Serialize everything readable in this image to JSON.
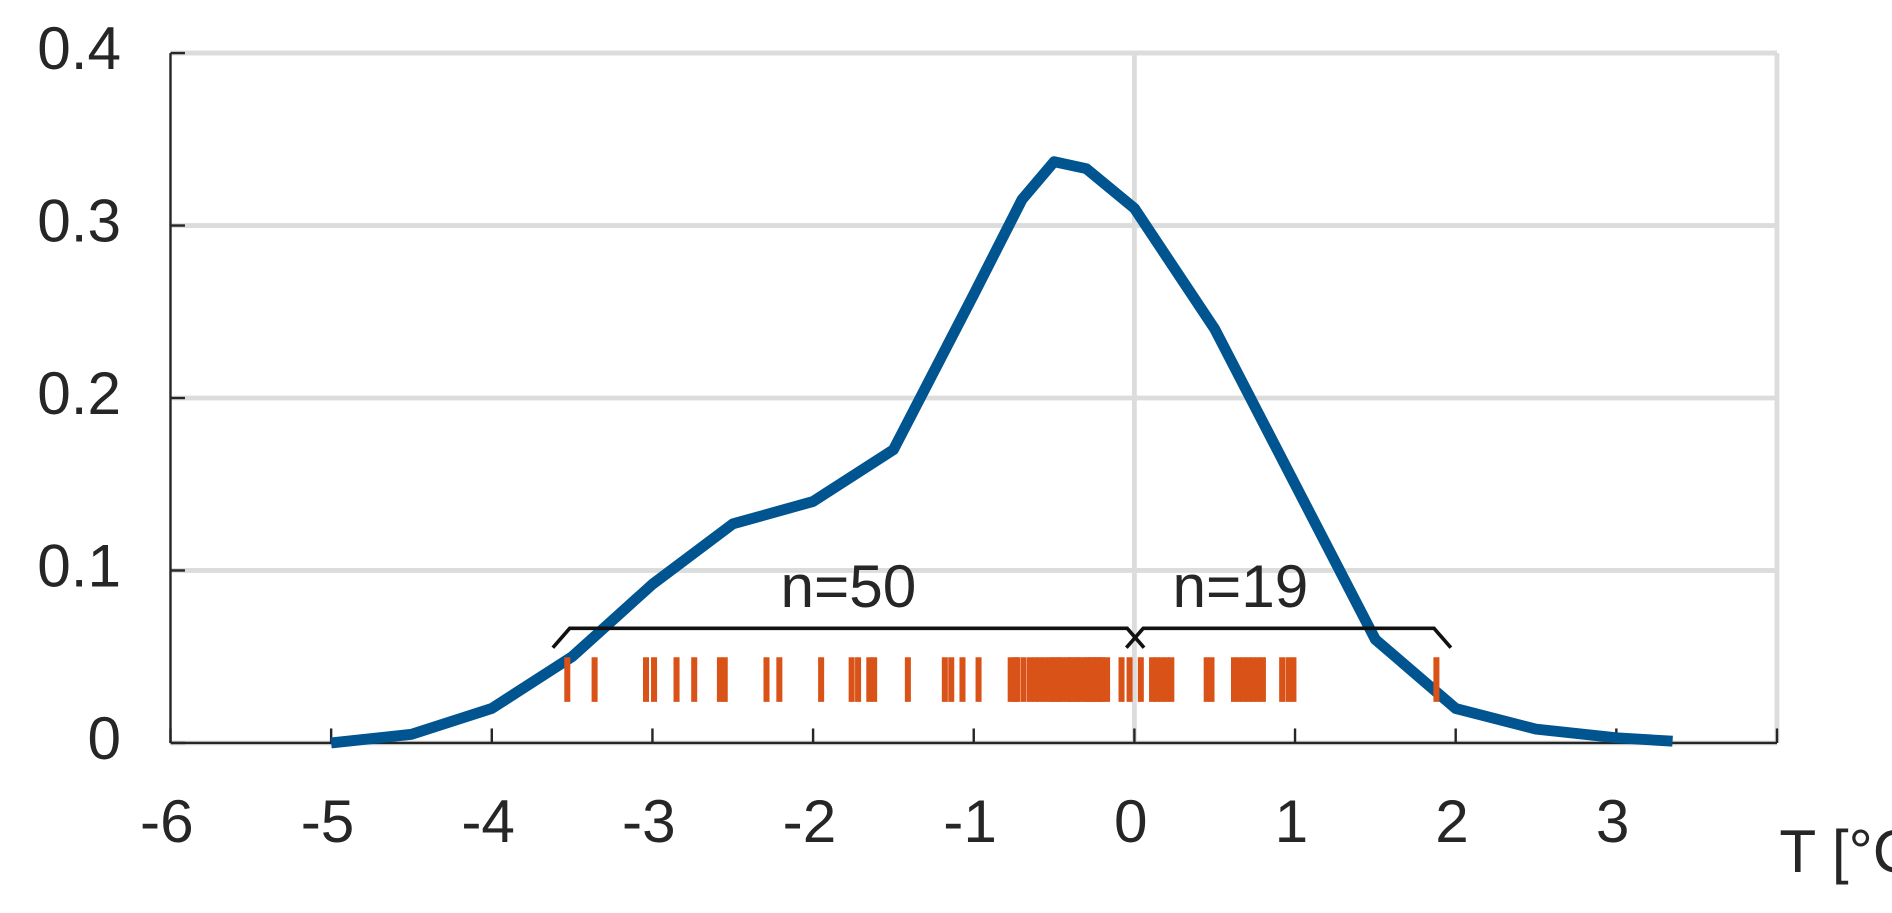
{
  "chart_data": {
    "type": "line",
    "x_label": "T [°C]",
    "xlim": [
      -6,
      4
    ],
    "xticks": [
      -6,
      -5,
      -4,
      -3,
      -2,
      -1,
      0,
      1,
      2,
      3
    ],
    "ylim": [
      0,
      0.4
    ],
    "yticks": [
      0,
      0.1,
      0.2,
      0.3,
      0.4
    ],
    "grid": true,
    "xgrid": [
      0
    ],
    "series": [
      {
        "color": "#00548f",
        "x": [
          -5,
          -4.5,
          -4,
          -3.5,
          -3,
          -2.5,
          -2,
          -1.5,
          -1,
          -0.7,
          -0.5,
          -0.3,
          0,
          0.5,
          1,
          1.5,
          2,
          2.5,
          3,
          3.35
        ],
        "values": [
          0.0,
          0.005,
          0.02,
          0.05,
          0.092,
          0.127,
          0.14,
          0.17,
          0.26,
          0.315,
          0.337,
          0.333,
          0.31,
          0.24,
          0.15,
          0.06,
          0.02,
          0.008,
          0.003,
          0.001
        ]
      }
    ],
    "rug_color": "#d95319",
    "rug": [
      {
        "label": "n=50",
        "values": [
          -3.53,
          -3.36,
          -3.04,
          -2.99,
          -2.85,
          -2.74,
          -2.58,
          -2.55,
          -2.29,
          -2.21,
          -1.95,
          -1.76,
          -1.72,
          -1.65,
          -1.62,
          -1.41,
          -1.18,
          -1.14,
          -1.07,
          -0.97,
          -0.77,
          -0.74,
          -0.73,
          -0.69,
          -0.65,
          -0.62,
          -0.59,
          -0.56,
          -0.53,
          -0.51,
          -0.49,
          -0.47,
          -0.45,
          -0.42,
          -0.4,
          -0.39,
          -0.36,
          -0.35,
          -0.33,
          -0.3,
          -0.29,
          -0.27,
          -0.26,
          -0.24,
          -0.23,
          -0.21,
          -0.2,
          -0.17,
          -0.08,
          -0.03
        ]
      },
      {
        "label": "n=19",
        "values": [
          0.04,
          0.11,
          0.14,
          0.17,
          0.2,
          0.23,
          0.45,
          0.48,
          0.62,
          0.65,
          0.68,
          0.71,
          0.74,
          0.77,
          0.8,
          0.92,
          0.96,
          0.99,
          1.88
        ]
      }
    ]
  }
}
